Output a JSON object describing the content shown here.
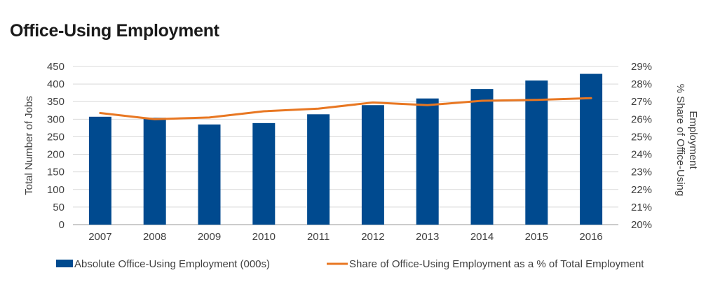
{
  "chart_data": {
    "type": "bar",
    "title": "Office-Using Employment",
    "categories": [
      "2007",
      "2008",
      "2009",
      "2010",
      "2011",
      "2012",
      "2013",
      "2014",
      "2015",
      "2016"
    ],
    "series": [
      {
        "name": "Absolute Office-Using Employment (000s)",
        "type": "bar",
        "axis": "left",
        "color": "#004a8f",
        "values": [
          307,
          304,
          285,
          289,
          314,
          340,
          359,
          386,
          410,
          429
        ]
      },
      {
        "name": "Share of Office-Using Employment as a % of Total Employment",
        "type": "line",
        "axis": "right",
        "color": "#e87722",
        "values": [
          26.35,
          26.0,
          26.1,
          26.45,
          26.6,
          26.95,
          26.8,
          27.05,
          27.1,
          27.2
        ]
      }
    ],
    "ylabel": "Total Number of Jobs",
    "ylim": [
      0,
      450
    ],
    "yticks": [
      "0",
      "50",
      "100",
      "150",
      "200",
      "250",
      "300",
      "350",
      "400",
      "450"
    ],
    "y2label_line1": "% Share of Office-Using",
    "y2label_line2": "Employment",
    "y2lim": [
      20,
      29
    ],
    "y2ticks": [
      "20%",
      "21%",
      "22%",
      "23%",
      "24%",
      "25%",
      "26%",
      "27%",
      "28%",
      "29%"
    ],
    "grid": true,
    "legend_position": "bottom"
  }
}
